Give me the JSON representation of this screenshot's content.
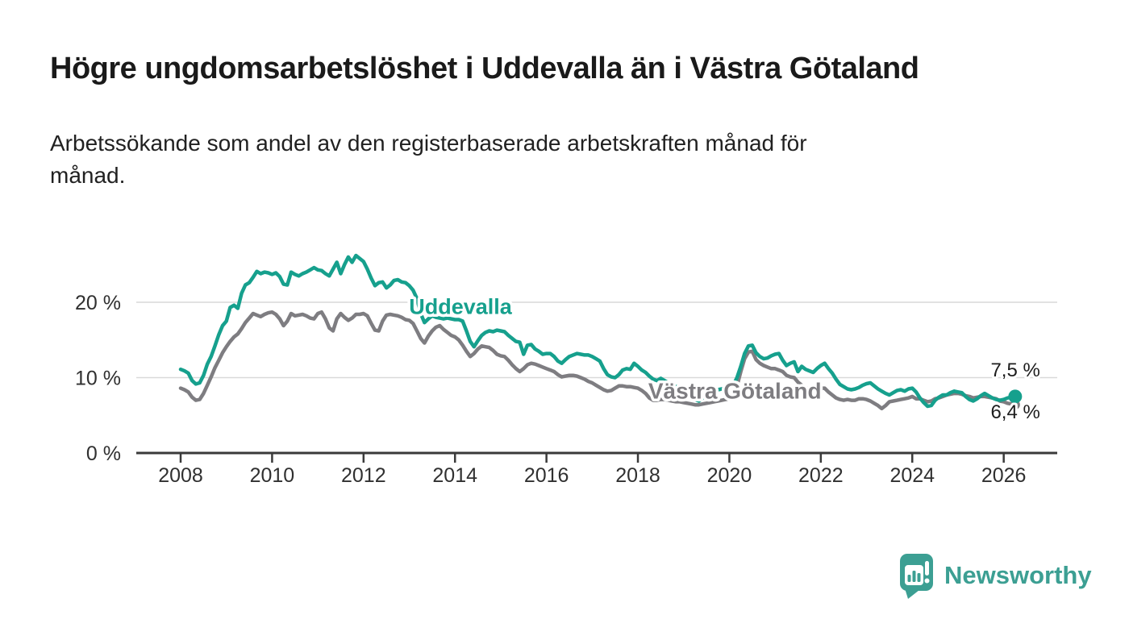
{
  "header": {
    "title": "Högre ungdomsarbetslöshet i Uddevalla än i Västra Götaland"
  },
  "subtitle": {
    "line1": "Arbetssökande som andel av den registerbaserade arbetskraften månad för",
    "line2": "månad."
  },
  "chart_data": {
    "type": "line",
    "title": "Högre ungdomsarbetslöshet i Uddevalla än i Västra Götaland",
    "subtitle": "Arbetssökande som andel av den registerbaserade arbetskraften månad för månad.",
    "unit": "%",
    "grid": "horizontal",
    "legend_position": "inline-labels",
    "x_axis": {
      "range": [
        2007.03,
        2027.17
      ],
      "ticks": [
        2008,
        2010,
        2012,
        2014,
        2016,
        2018,
        2020,
        2022,
        2024,
        2026
      ]
    },
    "y_axis": {
      "range": [
        0,
        28
      ],
      "ticks": [
        {
          "value": 0,
          "label": "0 %"
        },
        {
          "value": 10,
          "label": "10 %"
        },
        {
          "value": 20,
          "label": "20 %"
        }
      ]
    },
    "colors": {
      "uddevalla": "#16a08d",
      "vastra_gotaland": "#7e7d81"
    },
    "series": [
      {
        "id": "uddevalla",
        "name": "Uddevalla",
        "color": "#16a08d",
        "end_label": "7,5 %",
        "label_annotation": {
          "text": "Uddevalla",
          "x": 2014.12,
          "y": 19.5
        },
        "start_year": 2008,
        "step_months": 1,
        "values": [
          11.1,
          10.9,
          10.6,
          9.6,
          9.15,
          9.3,
          10.3,
          11.8,
          12.8,
          14.2,
          15.7,
          16.9,
          17.5,
          19.3,
          19.6,
          19.2,
          21.2,
          22.3,
          22.6,
          23.3,
          24.1,
          23.8,
          24.0,
          23.9,
          23.7,
          23.9,
          23.4,
          22.4,
          22.3,
          24.0,
          23.7,
          23.5,
          23.8,
          24.0,
          24.3,
          24.6,
          24.3,
          24.2,
          23.8,
          23.5,
          24.4,
          25.3,
          23.8,
          25.0,
          26.0,
          25.3,
          26.2,
          25.8,
          25.4,
          24.4,
          23.2,
          22.2,
          22.6,
          22.7,
          21.9,
          22.3,
          22.9,
          23.0,
          22.7,
          22.6,
          22.2,
          21.6,
          20.5,
          18.5,
          17.3,
          17.8,
          18.2,
          18.0,
          17.9,
          17.8,
          17.9,
          17.8,
          17.7,
          17.7,
          17.5,
          16.2,
          14.8,
          14.1,
          14.9,
          15.6,
          16.0,
          16.2,
          16.1,
          16.3,
          16.2,
          16.1,
          15.6,
          15.2,
          14.8,
          14.7,
          13.1,
          14.3,
          14.4,
          13.8,
          13.5,
          13.1,
          13.2,
          13.2,
          12.8,
          12.2,
          11.9,
          12.4,
          12.8,
          13.0,
          13.2,
          13.1,
          13.0,
          13.0,
          12.8,
          12.5,
          12.2,
          11.2,
          10.4,
          10.1,
          10.0,
          10.4,
          11.0,
          11.2,
          11.1,
          11.9,
          11.5,
          11.0,
          10.7,
          10.2,
          9.8,
          9.6,
          9.9,
          9.6,
          9.3,
          9.0,
          8.8,
          8.7,
          8.6,
          8.3,
          7.9,
          7.1,
          6.9,
          7.3,
          7.8,
          8.1,
          8.3,
          8.4,
          8.5,
          8.6,
          8.7,
          9.0,
          10.0,
          11.5,
          13.2,
          14.2,
          14.3,
          13.3,
          12.8,
          12.5,
          12.6,
          12.9,
          13.1,
          13.2,
          12.3,
          11.6,
          11.9,
          12.1,
          10.8,
          11.5,
          11.1,
          10.9,
          10.7,
          11.2,
          11.6,
          11.9,
          11.2,
          10.6,
          9.8,
          9.1,
          8.8,
          8.5,
          8.4,
          8.5,
          8.7,
          9.0,
          9.2,
          9.3,
          8.9,
          8.5,
          8.2,
          7.9,
          7.7,
          8.0,
          8.3,
          8.4,
          8.2,
          8.5,
          8.6,
          8.1,
          7.3,
          6.7,
          6.2,
          6.3,
          7.0,
          7.4,
          7.7,
          7.7,
          8.0,
          8.2,
          8.1,
          8.0,
          7.5,
          7.1,
          6.9,
          7.2,
          7.6,
          7.9,
          7.6,
          7.3,
          7.1,
          7.0,
          7.1,
          7.3,
          7.4,
          7.5
        ]
      },
      {
        "id": "vastra-gotaland",
        "name": "Västra Götaland",
        "color": "#7e7d81",
        "end_label": "6,4 %",
        "label_annotation": {
          "text": "Västra Götaland",
          "x": 2020.12,
          "y": 8.3
        },
        "start_year": 2008,
        "step_months": 1,
        "values": [
          8.6,
          8.4,
          8.1,
          7.4,
          7.0,
          7.1,
          7.9,
          9.0,
          10.1,
          11.3,
          12.3,
          13.3,
          14.1,
          14.8,
          15.4,
          15.8,
          16.5,
          17.3,
          17.9,
          18.5,
          18.3,
          18.1,
          18.4,
          18.6,
          18.7,
          18.4,
          17.8,
          16.9,
          17.5,
          18.5,
          18.2,
          18.3,
          18.4,
          18.2,
          17.9,
          17.8,
          18.5,
          18.7,
          17.8,
          16.6,
          16.2,
          17.8,
          18.5,
          18.0,
          17.6,
          17.9,
          18.4,
          18.4,
          18.5,
          18.2,
          17.2,
          16.3,
          16.2,
          17.5,
          18.3,
          18.4,
          18.3,
          18.2,
          18.0,
          17.7,
          17.6,
          17.2,
          16.2,
          15.2,
          14.6,
          15.5,
          16.2,
          16.7,
          16.9,
          16.4,
          16.0,
          15.6,
          15.4,
          15.0,
          14.3,
          13.5,
          12.8,
          13.2,
          13.8,
          14.2,
          14.1,
          14.0,
          13.6,
          13.1,
          12.9,
          12.8,
          12.3,
          11.7,
          11.2,
          10.8,
          11.2,
          11.7,
          11.9,
          11.8,
          11.6,
          11.4,
          11.2,
          11.0,
          10.8,
          10.4,
          10.1,
          10.2,
          10.3,
          10.3,
          10.2,
          10.0,
          9.8,
          9.5,
          9.3,
          9.0,
          8.7,
          8.4,
          8.2,
          8.3,
          8.6,
          8.9,
          8.9,
          8.8,
          8.8,
          8.7,
          8.6,
          8.3,
          7.9,
          7.3,
          7.0,
          7.0,
          7.1,
          7.1,
          7.0,
          6.9,
          6.8,
          6.8,
          6.7,
          6.6,
          6.5,
          6.4,
          6.4,
          6.5,
          6.6,
          6.7,
          6.8,
          6.9,
          7.0,
          7.1,
          7.2,
          7.6,
          8.9,
          10.8,
          12.5,
          13.4,
          13.5,
          12.4,
          11.9,
          11.6,
          11.4,
          11.2,
          11.2,
          11.0,
          10.8,
          10.3,
          10.1,
          10.0,
          9.4,
          9.0,
          8.7,
          8.5,
          8.4,
          8.5,
          8.6,
          8.6,
          8.1,
          7.7,
          7.3,
          7.1,
          7.0,
          7.1,
          7.0,
          7.0,
          7.2,
          7.2,
          7.1,
          6.9,
          6.6,
          6.3,
          5.9,
          6.3,
          6.8,
          6.9,
          7.0,
          7.1,
          7.2,
          7.3,
          7.5,
          7.2,
          7.2,
          7.0,
          6.8,
          6.9,
          7.2,
          7.3,
          7.5,
          7.7,
          7.8,
          7.9,
          7.9,
          7.8,
          7.6,
          7.5,
          7.3,
          7.4,
          7.5,
          7.5,
          7.4,
          7.3,
          7.2,
          6.9,
          6.8,
          6.6,
          6.5,
          6.4
        ]
      }
    ]
  },
  "footer": {
    "brand": "Newsworthy"
  }
}
